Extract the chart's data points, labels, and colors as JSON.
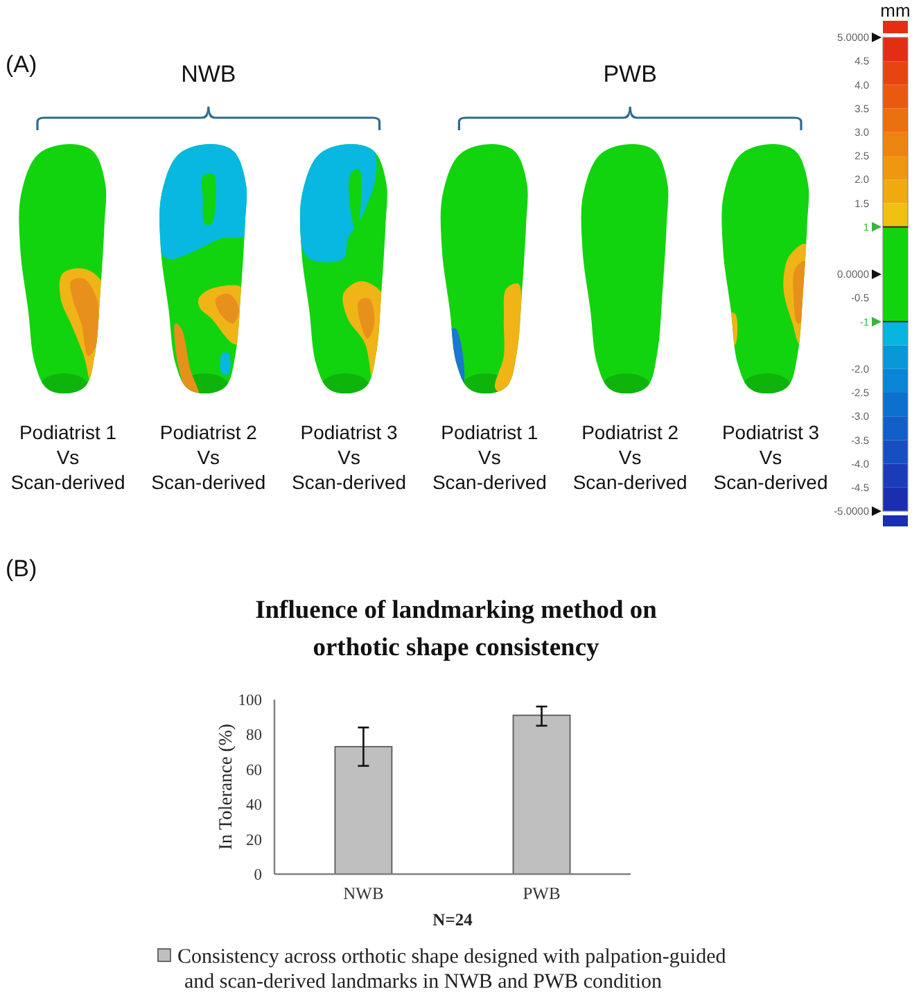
{
  "chart_data": [
    {
      "type": "other",
      "title": "(A)",
      "annotations": [
        "NWB",
        "PWB"
      ],
      "categories": [
        "Podiatrist 1\nVs\nScan-derived",
        "Podiatrist 2\nVs\nScan-derived",
        "Podiatrist 3\nVs\nScan-derived",
        "Podiatrist 1\nVs\nScan-derived",
        "Podiatrist 2\nVs\nScan-derived",
        "Podiatrist 3\nVs\nScan-derived"
      ]
    },
    {
      "type": "bar",
      "stacked": true,
      "categories": [
        null
      ],
      "series": [
        {
          "color": "#12d40e",
          "values": [
            1
          ]
        },
        {
          "color": "#f0c010",
          "values": [
            0.5
          ]
        },
        {
          "color": "#f0aa10",
          "values": [
            0.5
          ]
        },
        {
          "color": "#ee9810",
          "values": [
            0.5
          ]
        },
        {
          "color": "#ec8410",
          "values": [
            0.5
          ]
        },
        {
          "color": "#ea7010",
          "values": [
            0.5
          ]
        },
        {
          "color": "#e85a10",
          "values": [
            0.5
          ]
        },
        {
          "color": "#e64512",
          "values": [
            0.5
          ]
        },
        {
          "color": "#e42e14",
          "values": [
            0.5
          ]
        },
        {
          "color": "#12d40e",
          "values": [
            -1
          ]
        },
        {
          "color": "#08b4e0",
          "values": [
            -0.5
          ]
        },
        {
          "color": "#0898d8",
          "values": [
            -0.5
          ]
        },
        {
          "color": "#0a84d4",
          "values": [
            -0.5
          ]
        },
        {
          "color": "#0c70cc",
          "values": [
            -0.5
          ]
        },
        {
          "color": "#1060c8",
          "values": [
            -0.5
          ]
        },
        {
          "color": "#1450c0",
          "values": [
            -0.5
          ]
        },
        {
          "color": "#1a3cb8",
          "values": [
            -0.5
          ]
        },
        {
          "color": "#1a2fb0",
          "values": [
            -0.5
          ]
        }
      ],
      "ylabel": "mm",
      "ylim": [
        -5,
        5
      ],
      "yticks": [
        {
          "value": 5,
          "label": "5.0000"
        },
        4.5,
        {
          "value": 4,
          "label": "4.0"
        },
        3.5,
        {
          "value": 3,
          "label": "3.0"
        },
        2.5,
        {
          "value": 2,
          "label": "2.0"
        },
        1.5,
        1,
        {
          "value": 0,
          "label": "0.0000"
        },
        -0.5,
        -1,
        {
          "value": -2,
          "label": "-2.0"
        },
        -2.5,
        {
          "value": -3,
          "label": "-3.0"
        },
        -3.5,
        {
          "value": -4,
          "label": "-4.0"
        },
        -4.5,
        {
          "value": -5,
          "label": "-5.0000"
        }
      ],
      "tick_labels": "y",
      "ref_lines": [
        {
          "axis": "y",
          "value": 1,
          "color": "#1a1a1a"
        },
        {
          "axis": "y",
          "value": -1,
          "color": "#1a1a1a"
        }
      ]
    },
    {
      "type": "bar",
      "title": "Influence of landmarking method on orthotic shape consistency",
      "annotations": [
        "(B)"
      ],
      "categories": [
        "NWB",
        "PWB"
      ],
      "series": [
        {
          "name": "Consistency across orthotic shape designed with palpation-guided and scan-derived landmarks in NWB and PWB condition",
          "color": "#bfbfbf",
          "values": [
            73,
            91
          ],
          "errors": [
            [
              62,
              84
            ],
            [
              85,
              96
            ]
          ]
        }
      ],
      "xlabel": "N=24",
      "ylabel": "In Tolerance (%)",
      "ylim": [
        0,
        100
      ],
      "yticks": [
        0,
        20,
        40,
        60,
        80,
        100
      ],
      "grid": false,
      "legend": "bottom"
    }
  ]
}
